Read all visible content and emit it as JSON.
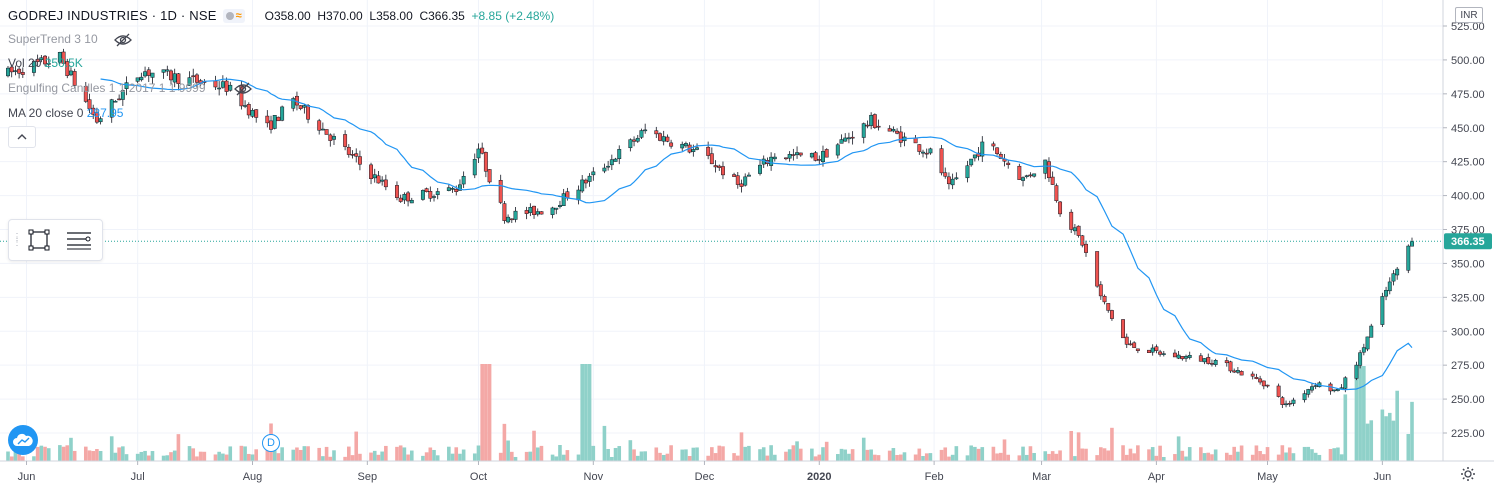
{
  "header": {
    "symbol": "GODREJ INDUSTRIES · 1D · NSE",
    "open": "O358.00",
    "high": "H370.00",
    "low": "L358.00",
    "close": "C366.35",
    "change": "+8.85 (+2.48%)",
    "badge": "≈"
  },
  "indicators": [
    {
      "label": "SuperTrend 3 10",
      "value": ""
    },
    {
      "label": "Vol 20",
      "value": "250.5K"
    },
    {
      "label": "Engulfing Candles 1 1 2017 1 1 9999",
      "value": ""
    },
    {
      "label": "MA 20 close 0",
      "value": "287.95"
    }
  ],
  "currency": "INR",
  "events": {
    "dividend_marker": "D"
  },
  "colors": {
    "up": "#26a69a",
    "down": "#ef5350",
    "volume_up": "#8fd1c9",
    "volume_down": "#f4a8a6",
    "ma": "#2196f3",
    "grid": "#f0f3fa",
    "last_price_line": "#26a69a"
  },
  "chart_data": {
    "type": "candlestick",
    "title": "GODREJ INDUSTRIES · 1D · NSE",
    "y_axis": {
      "ticks": [
        225,
        250,
        275,
        300,
        325,
        350,
        375,
        400,
        425,
        450,
        475,
        500,
        525
      ],
      "tick_labels": [
        "225.00",
        "250.00",
        "275.00",
        "300.00",
        "325.00",
        "350.00",
        "375.00",
        "400.00",
        "425.00",
        "450.00",
        "475.00",
        "500.00",
        "525.00"
      ],
      "range": [
        211,
        535
      ],
      "side": "right"
    },
    "x_axis": {
      "labels": [
        "Jun",
        "Jul",
        "Aug",
        "Sep",
        "Oct",
        "Nov",
        "Dec",
        "2020",
        "Feb",
        "Mar",
        "Apr",
        "May",
        "Jun"
      ],
      "bold": [
        "2020"
      ]
    },
    "last_price": 366.35,
    "last_price_label": "366.35",
    "ma_period": 20,
    "ma_last": 287.95,
    "volume_last": "250.5K",
    "price_path": [
      [
        "2019-05-27",
        490
      ],
      [
        "2019-06-10",
        502
      ],
      [
        "2019-06-20",
        455
      ],
      [
        "2019-07-02",
        492
      ],
      [
        "2019-07-25",
        480
      ],
      [
        "2019-08-05",
        450
      ],
      [
        "2019-08-12",
        470
      ],
      [
        "2019-09-01",
        418
      ],
      [
        "2019-09-10",
        398
      ],
      [
        "2019-09-25",
        405
      ],
      [
        "2019-10-01",
        435
      ],
      [
        "2019-10-08",
        385
      ],
      [
        "2019-10-20",
        390
      ],
      [
        "2019-11-01",
        415
      ],
      [
        "2019-11-15",
        448
      ],
      [
        "2019-12-01",
        430
      ],
      [
        "2019-12-10",
        408
      ],
      [
        "2019-12-20",
        430
      ],
      [
        "2020-01-01",
        428
      ],
      [
        "2020-01-15",
        455
      ],
      [
        "2020-02-01",
        430
      ],
      [
        "2020-02-05",
        405
      ],
      [
        "2020-02-15",
        440
      ],
      [
        "2020-02-25",
        412
      ],
      [
        "2020-03-02",
        425
      ],
      [
        "2020-03-06",
        390
      ],
      [
        "2020-03-12",
        365
      ],
      [
        "2020-03-17",
        325
      ],
      [
        "2020-03-24",
        290
      ],
      [
        "2020-04-03",
        283
      ],
      [
        "2020-04-17",
        278
      ],
      [
        "2020-04-30",
        262
      ],
      [
        "2020-05-06",
        245
      ],
      [
        "2020-05-14",
        262
      ],
      [
        "2020-05-20",
        255
      ],
      [
        "2020-05-26",
        282
      ],
      [
        "2020-06-02",
        330
      ],
      [
        "2020-06-09",
        366.35
      ]
    ],
    "volume_spikes": [
      {
        "date": "2019-10-03",
        "color": "down"
      },
      {
        "date": "2019-10-30",
        "color": "up"
      },
      {
        "date": "2020-05-26",
        "color": "up"
      }
    ]
  }
}
